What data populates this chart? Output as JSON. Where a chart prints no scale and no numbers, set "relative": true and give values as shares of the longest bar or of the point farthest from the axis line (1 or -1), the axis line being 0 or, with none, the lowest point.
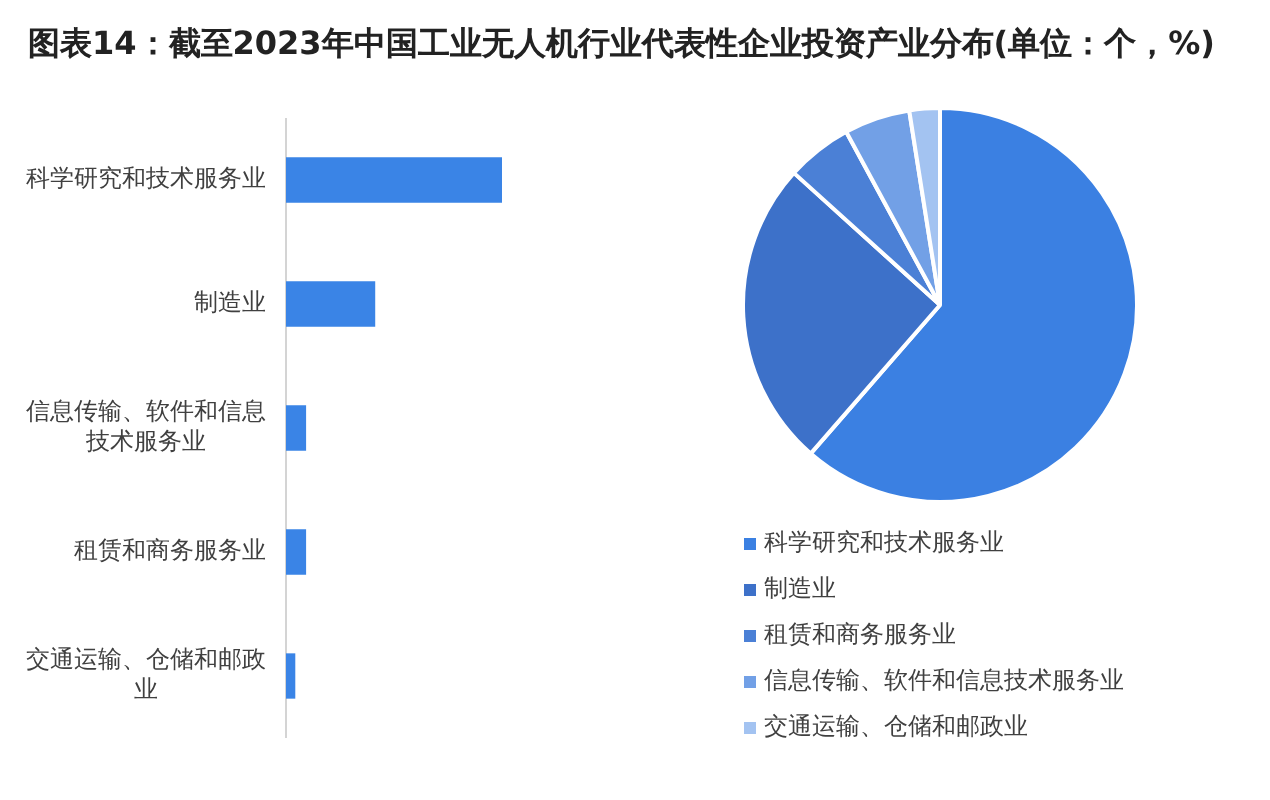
{
  "chart_data": [
    {
      "type": "bar",
      "title": "图表14：截至2023年中国工业无人机行业代表性企业投资产业分布(单位：个，%)",
      "orientation": "horizontal",
      "relative": true,
      "categories": [
        "科学研究和技术服务业",
        "制造业",
        "信息传输、软件和信息技术服务业",
        "租赁和商务服务业",
        "交通运输、仓储和邮政业"
      ],
      "values": [
        1,
        0.41,
        0.09,
        0.09,
        0.04
      ],
      "color": "#3a84e6"
    },
    {
      "type": "pie",
      "categories": [
        "科学研究和技术服务业",
        "制造业",
        "租赁和商务服务业",
        "信息传输、软件和信息技术服务业",
        "交通运输、仓储和邮政业"
      ],
      "values": [
        61.4,
        25.3,
        5.4,
        5.4,
        2.5
      ],
      "colors": [
        "#3b80e2",
        "#3d71c9",
        "#4b80d6",
        "#72a0e6",
        "#a3c3f1"
      ],
      "legend": "bottom"
    }
  ]
}
